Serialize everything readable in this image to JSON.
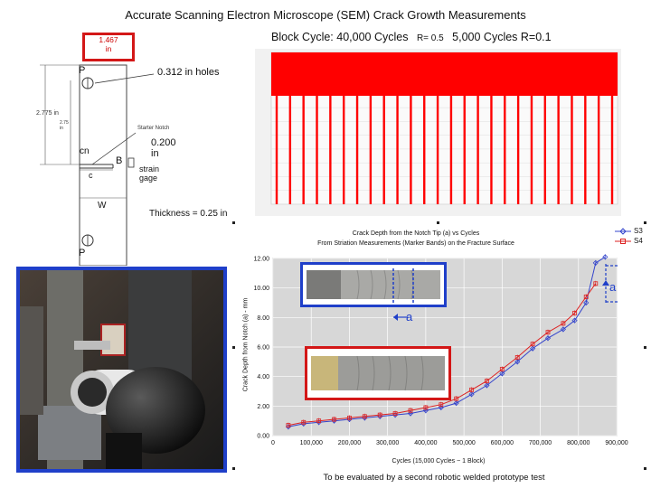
{
  "title": "Accurate Scanning Electron Microscope (SEM) Crack Growth Measurements",
  "specimen": {
    "top_dim": "1.467\nin",
    "label_p_top": "P",
    "holes": "0.312 in holes",
    "height_main": "2.775 in",
    "height_sub": "2.75\nin",
    "notch": "Starter Notch",
    "cn": "cn",
    "notch_width": "0.200\nin",
    "b": "B",
    "strain_gage": "strain\ngage",
    "c": "c",
    "w": "W",
    "thickness": "Thickness = 0.25 in",
    "label_p_bottom": "P"
  },
  "block_cycle": {
    "title_a": "Block Cycle: 40,000 Cycles",
    "r_a": "R= 0.5",
    "title_b": "5,000 Cycles R=0.1",
    "colors": {
      "bar": "#ff0000",
      "grid": "#dddddd",
      "background": "#f1f1f1"
    }
  },
  "crack_chart": {
    "title_line1": "Crack Depth from the Notch Tip (a) vs Cycles",
    "title_line2": "From Striation Measurements (Marker Bands) on the Fracture Surface",
    "ylabel": "Crack Depth from Notch (a) - mm",
    "xlabel": "Cycles (15,000 Cycles ~ 1 Block)",
    "footer": "To be evaluated by a second robotic welded prototype test",
    "crack_label_a": "a",
    "crack_label_b": "a"
  },
  "chart_data": {
    "type": "line",
    "title": "Crack Depth from the Notch Tip (a) vs Cycles",
    "subtitle": "From Striation Measurements (Marker Bands) on the Fracture Surface",
    "xlabel": "Cycles (15,000 Cycles ~ 1 Block)",
    "ylabel": "Crack Depth from Notch (a) - mm",
    "xlim": [
      0,
      900000
    ],
    "ylim": [
      0,
      12
    ],
    "x_ticks": [
      "0",
      "100,000",
      "200,000",
      "300,000",
      "400,000",
      "500,000",
      "600,000",
      "700,000",
      "800,000",
      "900,000"
    ],
    "y_ticks": [
      "0.00",
      "2.00",
      "4.00",
      "6.00",
      "8.00",
      "10.00",
      "12.00"
    ],
    "grid": true,
    "legend_position": "top-right",
    "series": [
      {
        "name": "S3",
        "color": "#3344cc",
        "marker": "diamond",
        "x": [
          40000,
          80000,
          120000,
          160000,
          200000,
          240000,
          280000,
          320000,
          360000,
          400000,
          440000,
          480000,
          520000,
          560000,
          600000,
          640000,
          680000,
          720000,
          760000,
          790000,
          820000,
          845000,
          870000
        ],
        "y": [
          0.6,
          0.8,
          0.9,
          1.0,
          1.1,
          1.2,
          1.3,
          1.4,
          1.5,
          1.7,
          1.9,
          2.2,
          2.8,
          3.4,
          4.2,
          5.0,
          5.9,
          6.6,
          7.2,
          7.8,
          9.0,
          11.7,
          12.1
        ]
      },
      {
        "name": "S4",
        "color": "#dd2222",
        "marker": "square",
        "x": [
          40000,
          80000,
          120000,
          160000,
          200000,
          240000,
          280000,
          320000,
          360000,
          400000,
          440000,
          480000,
          520000,
          560000,
          600000,
          640000,
          680000,
          720000,
          760000,
          790000,
          820000,
          845000
        ],
        "y": [
          0.7,
          0.9,
          1.0,
          1.1,
          1.2,
          1.3,
          1.4,
          1.5,
          1.7,
          1.9,
          2.1,
          2.5,
          3.1,
          3.7,
          4.5,
          5.3,
          6.2,
          7.0,
          7.6,
          8.3,
          9.4,
          10.3
        ]
      }
    ]
  }
}
